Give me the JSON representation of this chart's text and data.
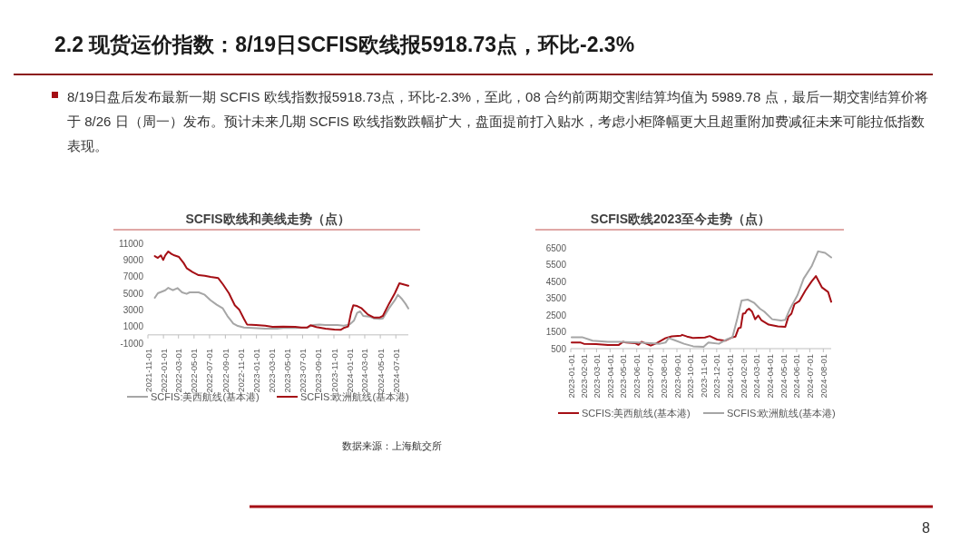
{
  "chart_data": [
    {
      "type": "other",
      "title": "2.2 现货运价指数：8/19日SCFIS欧线报5918.73点，环比-2.3%",
      "annotations": [
        "8/19日盘后发布最新一期 SCFIS 欧线指数报5918.73点，环比-2.3%，至此，08 合约前两期交割结算均值为 5989.78 点，最后一期交割结算价将于 8/26 日（周一）发布。预计未来几期 SCFIS 欧线指数跌幅扩大，盘面提前打入贴水，考虑小柜降幅更大且超重附加费减征未来可能拉低指数表现。",
        "8"
      ]
    },
    {
      "type": "line",
      "title": "SCFIS欧线和美线走势（点）",
      "legend": "bottom",
      "annotations": [
        "数据来源：上海航交所"
      ],
      "xlim": [
        "2021-11-01",
        "2024-08-19"
      ],
      "xticks": [
        "2021-11-01",
        "2022-01-01",
        "2022-03-01",
        "2022-05-01",
        "2022-07-01",
        "2022-09-01",
        "2022-11-01",
        "2023-01-01",
        "2023-03-01",
        "2023-05-01",
        "2023-07-01",
        "2023-09-01",
        "2023-11-01",
        "2024-01-01",
        "2024-03-01",
        "2024-05-01",
        "2024-07-01"
      ],
      "ylim": [
        -1000,
        11000
      ],
      "yticks": [
        -1000,
        1000,
        3000,
        5000,
        7000,
        9000,
        11000
      ],
      "series": [
        {
          "name": "SCFIS:美西航线(基本港)",
          "color": "#a6a6a6",
          "x": [
            "2021-11-28",
            "2021-12-10",
            "2022-01-08",
            "2022-01-20",
            "2022-02-07",
            "2022-02-25",
            "2022-03-15",
            "2022-04-02",
            "2022-04-14",
            "2022-05-19",
            "2022-06-12",
            "2022-07-05",
            "2022-07-29",
            "2022-08-22",
            "2022-09-09",
            "2022-10-02",
            "2022-10-20",
            "2022-11-13",
            "2022-12-18",
            "2023-02-04",
            "2023-03-23",
            "2023-04-16",
            "2023-06-02",
            "2023-07-20",
            "2023-08-12",
            "2023-09-05",
            "2023-09-29",
            "2023-11-15",
            "2023-12-09",
            "2024-01-02",
            "2024-01-19",
            "2024-01-31",
            "2024-02-12",
            "2024-02-24",
            "2024-03-19",
            "2024-04-05",
            "2024-04-29",
            "2024-05-11",
            "2024-06-04",
            "2024-06-27",
            "2024-07-09",
            "2024-07-23",
            "2024-08-08",
            "2024-08-19"
          ],
          "values": [
            4450,
            5000,
            5360,
            5650,
            5360,
            5620,
            5110,
            4930,
            5110,
            5110,
            4820,
            4160,
            3620,
            3180,
            2270,
            1360,
            1070,
            890,
            820,
            750,
            750,
            820,
            820,
            890,
            1180,
            1250,
            1180,
            1180,
            1110,
            1250,
            1730,
            2640,
            2820,
            2270,
            2200,
            1980,
            1910,
            1980,
            3180,
            4160,
            4820,
            4380,
            3730,
            3180
          ]
        },
        {
          "name": "SCFIS:欧洲航线(基本港)",
          "color": "#a50f15",
          "x": [
            "2021-11-28",
            "2021-12-10",
            "2021-12-22",
            "2021-12-31",
            "2022-01-08",
            "2022-01-20",
            "2022-02-01",
            "2022-02-13",
            "2022-03-03",
            "2022-03-21",
            "2022-04-02",
            "2022-04-25",
            "2022-05-19",
            "2022-06-12",
            "2022-07-05",
            "2022-08-04",
            "2022-08-22",
            "2022-09-15",
            "2022-10-08",
            "2022-10-26",
            "2022-11-13",
            "2022-11-25",
            "2022-12-30",
            "2023-02-04",
            "2023-03-05",
            "2023-04-16",
            "2023-06-02",
            "2023-06-26",
            "2023-07-20",
            "2023-08-01",
            "2023-08-24",
            "2023-09-29",
            "2023-11-03",
            "2023-11-27",
            "2023-12-09",
            "2023-12-27",
            "2024-01-07",
            "2024-01-16",
            "2024-01-31",
            "2024-02-18",
            "2024-03-13",
            "2024-04-05",
            "2024-04-29",
            "2024-05-11",
            "2024-06-04",
            "2024-06-27",
            "2024-07-15",
            "2024-08-19"
          ],
          "values": [
            9470,
            9250,
            9550,
            9000,
            9550,
            10020,
            9730,
            9550,
            9360,
            8640,
            8020,
            7550,
            7180,
            7110,
            6960,
            6820,
            6090,
            5000,
            3550,
            3000,
            1910,
            1250,
            1180,
            1110,
            960,
            1000,
            960,
            890,
            890,
            1150,
            930,
            750,
            640,
            600,
            820,
            1000,
            2640,
            3550,
            3470,
            3180,
            2450,
            2090,
            2090,
            2270,
            3730,
            5000,
            6200,
            5910
          ]
        }
      ]
    },
    {
      "type": "line",
      "title": "SCFIS欧线2023至今走势（点）",
      "legend": "bottom",
      "xlim": [
        "2023-01-01",
        "2024-08-19"
      ],
      "xticks": [
        "2023-01-01",
        "2023-02-01",
        "2023-03-01",
        "2023-04-01",
        "2023-05-01",
        "2023-06-01",
        "2023-07-01",
        "2023-08-01",
        "2023-09-01",
        "2023-10-01",
        "2023-11-01",
        "2023-12-01",
        "2024-01-01",
        "2024-02-01",
        "2024-03-01",
        "2024-04-01",
        "2024-05-01",
        "2024-06-01",
        "2024-07-01",
        "2024-08-01"
      ],
      "ylim": [
        500,
        6500
      ],
      "yticks": [
        500,
        1500,
        2500,
        3500,
        4500,
        5500,
        6500
      ],
      "series": [
        {
          "name": "SCFIS:美西航线(基本港)",
          "color": "#a50f15",
          "x": [
            "2023-01-03",
            "2023-01-24",
            "2023-01-31",
            "2023-02-28",
            "2023-03-27",
            "2023-04-21",
            "2023-05-01",
            "2023-05-08",
            "2023-05-29",
            "2023-06-05",
            "2023-06-12",
            "2023-07-03",
            "2023-07-16",
            "2023-08-06",
            "2023-08-20",
            "2023-09-10",
            "2023-09-13",
            "2023-09-24",
            "2023-10-08",
            "2023-11-04",
            "2023-11-15",
            "2023-12-02",
            "2023-12-20",
            "2024-01-06",
            "2024-01-13",
            "2024-01-20",
            "2024-01-25",
            "2024-01-30",
            "2024-02-04",
            "2024-02-08",
            "2024-02-13",
            "2024-02-20",
            "2024-02-27",
            "2024-03-05",
            "2024-03-12",
            "2024-03-29",
            "2024-04-19",
            "2024-05-06",
            "2024-05-13",
            "2024-05-20",
            "2024-05-27",
            "2024-06-07",
            "2024-06-21",
            "2024-07-05",
            "2024-07-15",
            "2024-07-29",
            "2024-08-12",
            "2024-08-19"
          ],
          "values": [
            860,
            860,
            790,
            770,
            720,
            720,
            910,
            860,
            820,
            730,
            910,
            680,
            820,
            1130,
            1230,
            1270,
            1320,
            1220,
            1130,
            1160,
            1250,
            1040,
            970,
            1180,
            1220,
            1720,
            1750,
            2580,
            2610,
            2790,
            2880,
            2700,
            2250,
            2470,
            2200,
            1930,
            1820,
            1800,
            2400,
            2580,
            3150,
            3330,
            3960,
            4490,
            4820,
            4140,
            3870,
            3290
          ]
        },
        {
          "name": "SCFIS:欧洲航线(基本港)",
          "color": "#a6a6a6",
          "x": [
            "2023-01-03",
            "2023-01-27",
            "2023-02-20",
            "2023-03-27",
            "2023-04-23",
            "2023-06-05",
            "2023-07-03",
            "2023-07-24",
            "2023-08-06",
            "2023-08-13",
            "2023-08-27",
            "2023-09-17",
            "2023-10-08",
            "2023-11-01",
            "2023-11-12",
            "2023-12-06",
            "2023-12-23",
            "2024-01-06",
            "2024-01-16",
            "2024-01-27",
            "2024-02-10",
            "2024-02-24",
            "2024-03-09",
            "2024-03-19",
            "2024-04-06",
            "2024-04-26",
            "2024-05-06",
            "2024-05-17",
            "2024-06-03",
            "2024-06-17",
            "2024-07-05",
            "2024-07-20",
            "2024-08-05",
            "2024-08-19"
          ],
          "values": [
            1180,
            1180,
            970,
            910,
            910,
            860,
            820,
            790,
            860,
            1130,
            1000,
            790,
            640,
            610,
            860,
            790,
            1040,
            1180,
            2170,
            3370,
            3420,
            3240,
            2880,
            2700,
            2250,
            2170,
            2220,
            2880,
            3690,
            4670,
            5390,
            6290,
            6200,
            5930
          ]
        }
      ]
    }
  ]
}
